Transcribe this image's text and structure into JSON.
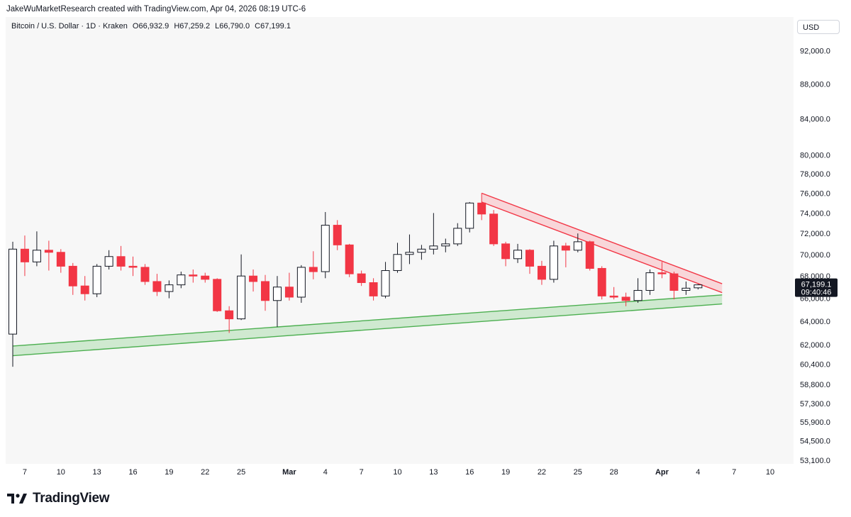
{
  "header": {
    "attribution": "JakeWuMarketResearch created with TradingView.com, Apr 04, 2026 08:19 UTC-6"
  },
  "legend": {
    "symbol": "Bitcoin / U.S. Dollar · 1D · Kraken",
    "open": "O66,932.9",
    "high": "H67,259.2",
    "low": "L66,790.0",
    "close": "C67,199.1"
  },
  "price_axis": {
    "currency": "USD",
    "last_price": "67,199.1",
    "countdown": "09:40:46"
  },
  "branding": {
    "logo_text": "TradingView"
  },
  "colors": {
    "up_candle": "#ffffff",
    "down_candle": "#f23645",
    "candle_outline": "#131722",
    "support_line": "#4caf50",
    "support_fill": "#c8e6c9",
    "resistance_line": "#f23645",
    "resistance_fill": "#f8d0d4",
    "background": "#f7f7f7"
  },
  "chart_data": {
    "type": "candlestick",
    "symbol": "BTCUSD",
    "interval": "1D",
    "yscale": "log",
    "ylim": [
      53100,
      95000
    ],
    "y_ticks": [
      {
        "value": 92000,
        "label": "92,000.0"
      },
      {
        "value": 88000,
        "label": "88,000.0"
      },
      {
        "value": 84000,
        "label": "84,000.0"
      },
      {
        "value": 80000,
        "label": "80,000.0"
      },
      {
        "value": 78000,
        "label": "78,000.0"
      },
      {
        "value": 76000,
        "label": "76,000.0"
      },
      {
        "value": 74000,
        "label": "74,000.0"
      },
      {
        "value": 72000,
        "label": "72,000.0"
      },
      {
        "value": 70000,
        "label": "70,000.0"
      },
      {
        "value": 68000,
        "label": "68,000.0"
      },
      {
        "value": 66000,
        "label": "66,000.0"
      },
      {
        "value": 64000,
        "label": "64,000.0"
      },
      {
        "value": 62000,
        "label": "62,000.0"
      },
      {
        "value": 60400,
        "label": "60,400.0"
      },
      {
        "value": 58800,
        "label": "58,800.0"
      },
      {
        "value": 57300,
        "label": "57,300.0"
      },
      {
        "value": 55900,
        "label": "55,900.0"
      },
      {
        "value": 54500,
        "label": "54,500.0"
      },
      {
        "value": 53100,
        "label": "53,100.0"
      }
    ],
    "x_ticks": [
      {
        "date": "2026-02-07",
        "label": "7"
      },
      {
        "date": "2026-02-10",
        "label": "10"
      },
      {
        "date": "2026-02-13",
        "label": "13"
      },
      {
        "date": "2026-02-16",
        "label": "16"
      },
      {
        "date": "2026-02-19",
        "label": "19"
      },
      {
        "date": "2026-02-22",
        "label": "22"
      },
      {
        "date": "2026-02-25",
        "label": "25"
      },
      {
        "date": "2026-03-01",
        "label": "Mar",
        "bold": true
      },
      {
        "date": "2026-03-04",
        "label": "4"
      },
      {
        "date": "2026-03-07",
        "label": "7"
      },
      {
        "date": "2026-03-10",
        "label": "10"
      },
      {
        "date": "2026-03-13",
        "label": "13"
      },
      {
        "date": "2026-03-16",
        "label": "16"
      },
      {
        "date": "2026-03-19",
        "label": "19"
      },
      {
        "date": "2026-03-22",
        "label": "22"
      },
      {
        "date": "2026-03-25",
        "label": "25"
      },
      {
        "date": "2026-03-28",
        "label": "28"
      },
      {
        "date": "2026-04-01",
        "label": "Apr",
        "bold": true
      },
      {
        "date": "2026-04-04",
        "label": "4"
      },
      {
        "date": "2026-04-07",
        "label": "7"
      },
      {
        "date": "2026-04-10",
        "label": "10"
      }
    ],
    "x_range": [
      "2026-02-06",
      "2026-04-11"
    ],
    "candles": [
      {
        "date": "2026-02-06",
        "o": 62900,
        "h": 71200,
        "l": 60200,
        "c": 70500
      },
      {
        "date": "2026-02-07",
        "o": 70500,
        "h": 71800,
        "l": 68000,
        "c": 69300
      },
      {
        "date": "2026-02-08",
        "o": 69300,
        "h": 72200,
        "l": 68900,
        "c": 70400
      },
      {
        "date": "2026-02-09",
        "o": 70400,
        "h": 71300,
        "l": 68500,
        "c": 70200
      },
      {
        "date": "2026-02-10",
        "o": 70200,
        "h": 70500,
        "l": 68300,
        "c": 68900
      },
      {
        "date": "2026-02-11",
        "o": 68900,
        "h": 69200,
        "l": 66300,
        "c": 67100
      },
      {
        "date": "2026-02-12",
        "o": 67100,
        "h": 68000,
        "l": 65800,
        "c": 66400
      },
      {
        "date": "2026-02-13",
        "o": 66400,
        "h": 69100,
        "l": 66100,
        "c": 68900
      },
      {
        "date": "2026-02-14",
        "o": 68900,
        "h": 70400,
        "l": 68600,
        "c": 69800
      },
      {
        "date": "2026-02-15",
        "o": 69800,
        "h": 70800,
        "l": 68500,
        "c": 68900
      },
      {
        "date": "2026-02-16",
        "o": 68900,
        "h": 69800,
        "l": 68000,
        "c": 68800
      },
      {
        "date": "2026-02-17",
        "o": 68800,
        "h": 69100,
        "l": 67200,
        "c": 67500
      },
      {
        "date": "2026-02-18",
        "o": 67500,
        "h": 68200,
        "l": 66200,
        "c": 66600
      },
      {
        "date": "2026-02-19",
        "o": 66600,
        "h": 67600,
        "l": 66000,
        "c": 67200
      },
      {
        "date": "2026-02-20",
        "o": 67200,
        "h": 68400,
        "l": 66900,
        "c": 68100
      },
      {
        "date": "2026-02-21",
        "o": 68100,
        "h": 68600,
        "l": 67400,
        "c": 68000
      },
      {
        "date": "2026-02-22",
        "o": 68000,
        "h": 68300,
        "l": 67400,
        "c": 67700
      },
      {
        "date": "2026-02-23",
        "o": 67700,
        "h": 67800,
        "l": 64800,
        "c": 64900
      },
      {
        "date": "2026-02-24",
        "o": 64900,
        "h": 65300,
        "l": 63000,
        "c": 64200
      },
      {
        "date": "2026-02-25",
        "o": 64200,
        "h": 70000,
        "l": 64100,
        "c": 68000
      },
      {
        "date": "2026-02-26",
        "o": 68000,
        "h": 68600,
        "l": 66600,
        "c": 67500
      },
      {
        "date": "2026-02-27",
        "o": 67500,
        "h": 68100,
        "l": 64900,
        "c": 65800
      },
      {
        "date": "2026-02-28",
        "o": 65800,
        "h": 68000,
        "l": 63500,
        "c": 67000
      },
      {
        "date": "2026-03-01",
        "o": 67000,
        "h": 68300,
        "l": 65800,
        "c": 66100
      },
      {
        "date": "2026-03-02",
        "o": 66100,
        "h": 69000,
        "l": 65600,
        "c": 68800
      },
      {
        "date": "2026-03-03",
        "o": 68800,
        "h": 70300,
        "l": 67700,
        "c": 68400
      },
      {
        "date": "2026-03-04",
        "o": 68400,
        "h": 74100,
        "l": 67800,
        "c": 72800
      },
      {
        "date": "2026-03-05",
        "o": 72800,
        "h": 73300,
        "l": 70400,
        "c": 70900
      },
      {
        "date": "2026-03-06",
        "o": 70900,
        "h": 71000,
        "l": 67900,
        "c": 68200
      },
      {
        "date": "2026-03-07",
        "o": 68200,
        "h": 68500,
        "l": 67100,
        "c": 67400
      },
      {
        "date": "2026-03-08",
        "o": 67400,
        "h": 67800,
        "l": 65800,
        "c": 66200
      },
      {
        "date": "2026-03-09",
        "o": 66200,
        "h": 69300,
        "l": 66000,
        "c": 68500
      },
      {
        "date": "2026-03-10",
        "o": 68500,
        "h": 71100,
        "l": 68300,
        "c": 70000
      },
      {
        "date": "2026-03-11",
        "o": 70000,
        "h": 71900,
        "l": 69100,
        "c": 70200
      },
      {
        "date": "2026-03-12",
        "o": 70200,
        "h": 70900,
        "l": 69500,
        "c": 70500
      },
      {
        "date": "2026-03-13",
        "o": 70500,
        "h": 74000,
        "l": 70000,
        "c": 70800
      },
      {
        "date": "2026-03-14",
        "o": 70800,
        "h": 71500,
        "l": 70200,
        "c": 71000
      },
      {
        "date": "2026-03-15",
        "o": 71000,
        "h": 73000,
        "l": 70800,
        "c": 72500
      },
      {
        "date": "2026-03-16",
        "o": 72500,
        "h": 75100,
        "l": 72100,
        "c": 75000
      },
      {
        "date": "2026-03-17",
        "o": 75000,
        "h": 76000,
        "l": 73300,
        "c": 73900
      },
      {
        "date": "2026-03-18",
        "o": 73900,
        "h": 74300,
        "l": 70800,
        "c": 71000
      },
      {
        "date": "2026-03-19",
        "o": 71000,
        "h": 71200,
        "l": 68900,
        "c": 69600
      },
      {
        "date": "2026-03-20",
        "o": 69600,
        "h": 71000,
        "l": 69200,
        "c": 70400
      },
      {
        "date": "2026-03-21",
        "o": 70400,
        "h": 70500,
        "l": 68200,
        "c": 68900
      },
      {
        "date": "2026-03-22",
        "o": 68900,
        "h": 69400,
        "l": 67200,
        "c": 67700
      },
      {
        "date": "2026-03-23",
        "o": 67700,
        "h": 71300,
        "l": 67400,
        "c": 70800
      },
      {
        "date": "2026-03-24",
        "o": 70800,
        "h": 71100,
        "l": 68800,
        "c": 70400
      },
      {
        "date": "2026-03-25",
        "o": 70400,
        "h": 72000,
        "l": 70200,
        "c": 71200
      },
      {
        "date": "2026-03-26",
        "o": 71200,
        "h": 71300,
        "l": 68500,
        "c": 68700
      },
      {
        "date": "2026-03-27",
        "o": 68700,
        "h": 68900,
        "l": 65900,
        "c": 66200
      },
      {
        "date": "2026-03-28",
        "o": 66200,
        "h": 67000,
        "l": 65900,
        "c": 66100
      },
      {
        "date": "2026-03-29",
        "o": 66100,
        "h": 66500,
        "l": 65300,
        "c": 65800
      },
      {
        "date": "2026-03-30",
        "o": 65800,
        "h": 67800,
        "l": 65600,
        "c": 66700
      },
      {
        "date": "2026-03-31",
        "o": 66700,
        "h": 68600,
        "l": 66300,
        "c": 68300
      },
      {
        "date": "2026-04-01",
        "o": 68300,
        "h": 69300,
        "l": 67800,
        "c": 68200
      },
      {
        "date": "2026-04-02",
        "o": 68200,
        "h": 68400,
        "l": 65900,
        "c": 66700
      },
      {
        "date": "2026-04-03",
        "o": 66700,
        "h": 67500,
        "l": 66300,
        "c": 66900
      },
      {
        "date": "2026-04-04",
        "o": 66932.9,
        "h": 67259.2,
        "l": 66790.0,
        "c": 67199.1
      }
    ],
    "support_channel": {
      "upper": [
        {
          "date": "2026-02-06",
          "value": 61900
        },
        {
          "date": "2026-04-06",
          "value": 66300
        }
      ],
      "lower": [
        {
          "date": "2026-02-06",
          "value": 61100
        },
        {
          "date": "2026-04-06",
          "value": 65500
        }
      ]
    },
    "resistance_channel": {
      "upper": [
        {
          "date": "2026-03-17",
          "value": 76000
        },
        {
          "date": "2026-04-06",
          "value": 67300
        }
      ],
      "lower": [
        {
          "date": "2026-03-17",
          "value": 75100
        },
        {
          "date": "2026-04-06",
          "value": 66500
        }
      ]
    }
  }
}
